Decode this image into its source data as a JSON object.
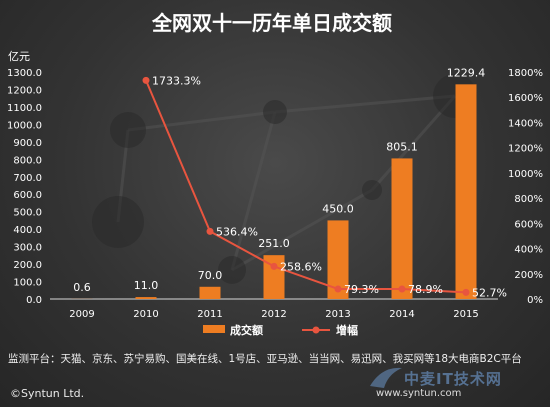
{
  "chart_data": {
    "type": "bar",
    "title": "全网双十一历年单日成交额",
    "left_axis_unit": "亿元",
    "categories": [
      "2009",
      "2010",
      "2011",
      "2012",
      "2013",
      "2014",
      "2015"
    ],
    "series": [
      {
        "name": "成交额",
        "type": "bar",
        "axis": "left",
        "values": [
          0.6,
          11.0,
          70.0,
          251.0,
          450.0,
          805.1,
          1229.4
        ],
        "labels": [
          "0.6",
          "11.0",
          "70.0",
          "251.0",
          "450.0",
          "805.1",
          "1229.4"
        ]
      },
      {
        "name": "增幅",
        "type": "line",
        "axis": "right",
        "values": [
          null,
          1733.3,
          536.4,
          258.6,
          79.3,
          78.9,
          52.7
        ],
        "labels": [
          "",
          "1733.3%",
          "536.4%",
          "258.6%",
          "79.3%",
          "78.9%",
          "52.7%"
        ]
      }
    ],
    "ylim_left": [
      0,
      1300
    ],
    "yticks_left": [
      "0.0",
      "100.0",
      "200.0",
      "300.0",
      "400.0",
      "500.0",
      "600.0",
      "700.0",
      "800.0",
      "900.0",
      "1000.0",
      "1100.0",
      "1200.0",
      "1300.0"
    ],
    "ylim_right": [
      0,
      1800
    ],
    "yticks_right": [
      "0%",
      "200%",
      "400%",
      "600%",
      "800%",
      "1000%",
      "1200%",
      "1400%",
      "1600%",
      "1800%"
    ],
    "grid": false,
    "legend_position": "bottom",
    "colors": {
      "bar": "#ee7d22",
      "line": "#e8553f",
      "background": "#333333",
      "text": "#ffffff"
    }
  },
  "footer": {
    "note": "监测平台：天猫、京东、苏宁易购、国美在线、1号店、亚马逊、当当网、易迅网、我买网等18大电商B2C平台",
    "copyright": "©Syntun Ltd."
  },
  "watermark": {
    "badge_text": "中麦IT技术网",
    "url": "www.syntun.com"
  }
}
